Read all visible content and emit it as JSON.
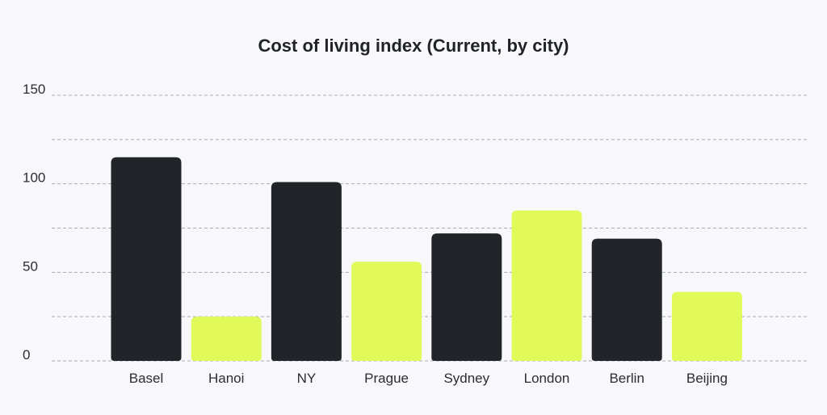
{
  "chart_data": {
    "type": "bar",
    "title": "Cost of living index (Current, by city)",
    "xlabel": "",
    "ylabel": "",
    "categories": [
      "Basel",
      "Hanoi",
      "NY",
      "Prague",
      "Sydney",
      "London",
      "Berlin",
      "Beijing"
    ],
    "values": [
      115,
      25,
      101,
      56,
      72,
      85,
      69,
      39
    ],
    "bar_colors": [
      "#212429",
      "#e1fa5a",
      "#212429",
      "#e1fa5a",
      "#212429",
      "#e1fa5a",
      "#212429",
      "#e1fa5a"
    ],
    "ylim": [
      0,
      150
    ],
    "yticks": [
      0,
      50,
      100,
      150
    ],
    "grid": true,
    "grid_style": "dashed",
    "legend": "none",
    "background": "#f8f8fa"
  }
}
